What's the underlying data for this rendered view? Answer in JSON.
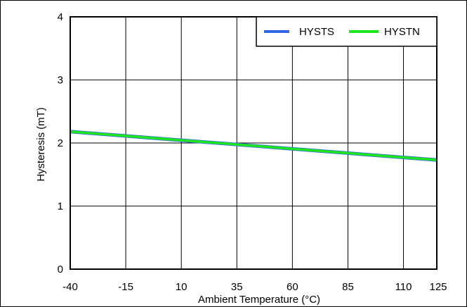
{
  "chart_data": {
    "type": "line",
    "xlabel": "Ambient Temperature (°C)",
    "ylabel": "Hysteresis (mT)",
    "x_ticks": [
      "-40",
      "-15",
      "10",
      "35",
      "60",
      "85",
      "110",
      "125"
    ],
    "y_ticks": [
      "0",
      "1",
      "2",
      "3",
      "4"
    ],
    "xlim": [
      -40,
      125
    ],
    "ylim": [
      0,
      4
    ],
    "grid": true,
    "legend_position": "top-right",
    "series": [
      {
        "name": "HYSTS",
        "color": "#3366e6",
        "x": [
          -40,
          125
        ],
        "y": [
          2.18,
          1.73
        ]
      },
      {
        "name": "HYSTN",
        "color": "#1ee61e",
        "x": [
          -40,
          125
        ],
        "y": [
          2.18,
          1.73
        ]
      }
    ]
  }
}
